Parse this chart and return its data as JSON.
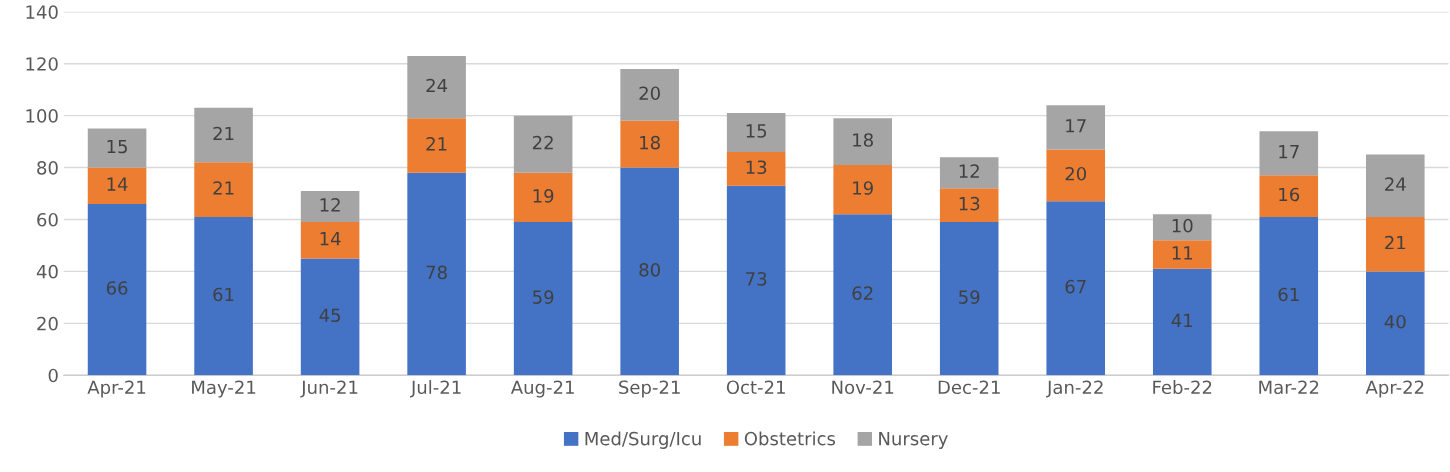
{
  "chart_data": {
    "type": "bar",
    "stacked": true,
    "categories": [
      "Apr-21",
      "May-21",
      "Jun-21",
      "Jul-21",
      "Aug-21",
      "Sep-21",
      "Oct-21",
      "Nov-21",
      "Dec-21",
      "Jan-22",
      "Feb-22",
      "Mar-22",
      "Apr-22"
    ],
    "series": [
      {
        "name": "Med/Surg/Icu",
        "color": "#4472c4",
        "values": [
          66,
          61,
          45,
          78,
          59,
          80,
          73,
          62,
          59,
          67,
          41,
          61,
          40
        ]
      },
      {
        "name": "Obstetrics",
        "color": "#ed7d31",
        "values": [
          14,
          21,
          14,
          21,
          19,
          18,
          13,
          19,
          13,
          20,
          11,
          16,
          21
        ]
      },
      {
        "name": "Nursery",
        "color": "#a5a5a5",
        "values": [
          15,
          21,
          12,
          24,
          22,
          20,
          15,
          18,
          12,
          17,
          10,
          17,
          24
        ]
      }
    ],
    "ylim": [
      0,
      140
    ],
    "yticks": [
      0,
      20,
      40,
      60,
      80,
      100,
      120,
      140
    ],
    "grid": "y",
    "legend": "bottom",
    "data_labels": true
  }
}
